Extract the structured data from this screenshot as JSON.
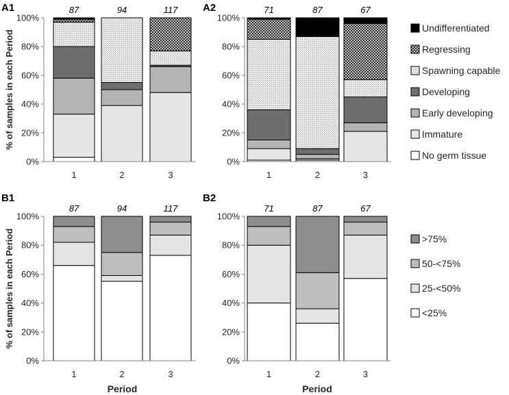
{
  "figure": {
    "patterns": {
      "undifferentiated": "#000000",
      "regressing": "#3a3a3a",
      "spawning": "#d4d4d4",
      "developing": "#6e6e6e",
      "early": "#b4b4b4",
      "immature": "#e6e6e6",
      "nogerm": "#ffffff",
      "gt75": "#8e8e8e",
      "p50to75": "#bdbdbd",
      "p25to50": "#e4e4e4",
      "lt25": "#ffffff"
    }
  },
  "chart_data": [
    {
      "id": "A1",
      "type": "bar",
      "stacked": true,
      "panel_label": "A1",
      "categories": [
        "1",
        "2",
        "3"
      ],
      "sample_sizes": [
        "87",
        "94",
        "117"
      ],
      "ylabel": "% of samples in each Period",
      "xlabel": "",
      "ylim": [
        0,
        100
      ],
      "yticks": [
        "0%",
        "20%",
        "40%",
        "60%",
        "80%",
        "100%"
      ],
      "legend_position": "right",
      "series": [
        {
          "name": "No germ tissue",
          "key": "nogerm",
          "values": [
            3,
            0,
            0
          ]
        },
        {
          "name": "Immature",
          "key": "immature",
          "values": [
            30,
            39,
            48
          ]
        },
        {
          "name": "Early developing",
          "key": "early",
          "values": [
            25,
            11,
            18
          ]
        },
        {
          "name": "Developing",
          "key": "developing",
          "values": [
            22,
            5,
            1
          ]
        },
        {
          "name": "Spawning capable",
          "key": "spawning",
          "values": [
            17,
            45,
            10
          ]
        },
        {
          "name": "Regressing",
          "key": "regressing",
          "values": [
            2,
            0,
            23
          ]
        },
        {
          "name": "Undifferentiated",
          "key": "undifferentiated",
          "values": [
            1,
            0,
            0
          ]
        }
      ]
    },
    {
      "id": "A2",
      "type": "bar",
      "stacked": true,
      "panel_label": "A2",
      "categories": [
        "1",
        "2",
        "3"
      ],
      "sample_sizes": [
        "71",
        "87",
        "67"
      ],
      "ylabel": "",
      "xlabel": "",
      "ylim": [
        0,
        100
      ],
      "yticks": [
        "0%",
        "20%",
        "40%",
        "60%",
        "80%",
        "100%"
      ],
      "legend": [
        "Undifferentiated",
        "Regressing",
        "Spawning capable",
        "Developing",
        "Early developing",
        "Immature",
        "No germ tissue"
      ],
      "legend_keys": [
        "undifferentiated",
        "regressing",
        "spawning",
        "developing",
        "early",
        "immature",
        "nogerm"
      ],
      "legend_position": "right",
      "series": [
        {
          "name": "No germ tissue",
          "key": "nogerm",
          "values": [
            1,
            1,
            0
          ]
        },
        {
          "name": "Immature",
          "key": "immature",
          "values": [
            8,
            1,
            21
          ]
        },
        {
          "name": "Early developing",
          "key": "early",
          "values": [
            6,
            3,
            6
          ]
        },
        {
          "name": "Developing",
          "key": "developing",
          "values": [
            21,
            4,
            18
          ]
        },
        {
          "name": "Spawning capable",
          "key": "spawning",
          "values": [
            49,
            78,
            12
          ]
        },
        {
          "name": "Regressing",
          "key": "regressing",
          "values": [
            14,
            0,
            39
          ]
        },
        {
          "name": "Undifferentiated",
          "key": "undifferentiated",
          "values": [
            1,
            13,
            4
          ]
        }
      ]
    },
    {
      "id": "B1",
      "type": "bar",
      "stacked": true,
      "panel_label": "B1",
      "categories": [
        "1",
        "2",
        "3"
      ],
      "sample_sizes": [
        "87",
        "94",
        "117"
      ],
      "ylabel": "% of samples in each Period",
      "xlabel": "Period",
      "ylim": [
        0,
        100
      ],
      "yticks": [
        "0%",
        "20%",
        "40%",
        "60%",
        "80%",
        "100%"
      ],
      "legend_position": "right",
      "series": [
        {
          "name": "<25%",
          "key": "lt25",
          "values": [
            66,
            55,
            73
          ]
        },
        {
          "name": "25-<50%",
          "key": "p25to50",
          "values": [
            16,
            4,
            14
          ]
        },
        {
          "name": "50-<75%",
          "key": "p50to75",
          "values": [
            11,
            16,
            9
          ]
        },
        {
          "name": ">75%",
          "key": "gt75",
          "values": [
            7,
            25,
            4
          ]
        }
      ]
    },
    {
      "id": "B2",
      "type": "bar",
      "stacked": true,
      "panel_label": "B2",
      "categories": [
        "1",
        "2",
        "3"
      ],
      "sample_sizes": [
        "71",
        "87",
        "67"
      ],
      "ylabel": "",
      "xlabel": "Period",
      "ylim": [
        0,
        100
      ],
      "yticks": [
        "0%",
        "20%",
        "40%",
        "60%",
        "80%",
        "100%"
      ],
      "legend": [
        ">75%",
        "50-<75%",
        "25-<50%",
        "<25%"
      ],
      "legend_keys": [
        "gt75",
        "p50to75",
        "p25to50",
        "lt25"
      ],
      "legend_position": "right",
      "series": [
        {
          "name": "<25%",
          "key": "lt25",
          "values": [
            40,
            26,
            57
          ]
        },
        {
          "name": "25-<50%",
          "key": "p25to50",
          "values": [
            40,
            10,
            30
          ]
        },
        {
          "name": "50-<75%",
          "key": "p50to75",
          "values": [
            13,
            25,
            9
          ]
        },
        {
          "name": ">75%",
          "key": "gt75",
          "values": [
            7,
            39,
            4
          ]
        }
      ]
    }
  ]
}
